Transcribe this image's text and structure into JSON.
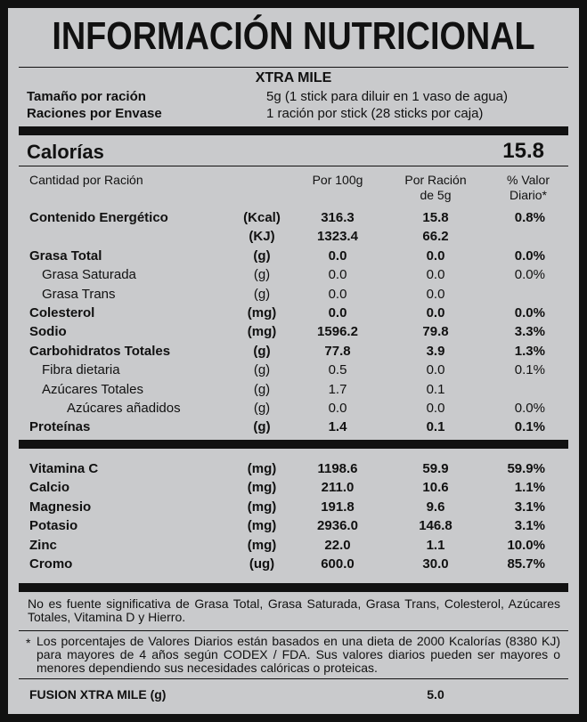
{
  "title": "INFORMACIÓN NUTRICIONAL",
  "product": "XTRA MILE",
  "serving": [
    {
      "label": "Tamaño por ración",
      "value": "5g (1 stick para diluir en 1 vaso de agua)"
    },
    {
      "label": "Raciones por Envase",
      "value": "1 ración por stick (28 sticks por caja)"
    }
  ],
  "calories": {
    "label": "Calorías",
    "value": "15.8"
  },
  "columns": [
    "Cantidad por Ración",
    "Por 100g",
    "Por Ración de 5g",
    "% Valor Diario*"
  ],
  "nutrients": [
    {
      "name": "Contenido Energético",
      "unit": "(Kcal)",
      "per_100g": "316.3",
      "per_serving": "15.8",
      "daily_value": "0.8%",
      "style": "bold"
    },
    {
      "unit": "(KJ)",
      "per_100g": "1323.4",
      "per_serving": "66.2",
      "style": "bold"
    },
    {
      "name": "Grasa Total",
      "unit": "(g)",
      "per_100g": "0.0",
      "per_serving": "0.0",
      "daily_value": "0.0%",
      "style": "bold"
    },
    {
      "name": "Grasa Saturada",
      "unit": "(g)",
      "per_100g": "0.0",
      "per_serving": "0.0",
      "daily_value": "0.0%",
      "style": "sub"
    },
    {
      "name": "Grasa Trans",
      "unit": "(g)",
      "per_100g": "0.0",
      "per_serving": "0.0",
      "style": "sub"
    },
    {
      "name": "Colesterol",
      "unit": "(mg)",
      "per_100g": "0.0",
      "per_serving": "0.0",
      "daily_value": "0.0%",
      "style": "bold"
    },
    {
      "name": "Sodio",
      "unit": "(mg)",
      "per_100g": "1596.2",
      "per_serving": "79.8",
      "daily_value": "3.3%",
      "style": "bold"
    },
    {
      "name": "Carbohidratos Totales",
      "unit": "(g)",
      "per_100g": "77.8",
      "per_serving": "3.9",
      "daily_value": "1.3%",
      "style": "bold"
    },
    {
      "name": "Fibra dietaria",
      "unit": "(g)",
      "per_100g": "0.5",
      "per_serving": "0.0",
      "daily_value": "0.1%",
      "style": "sub"
    },
    {
      "name": "Azúcares Totales",
      "unit": "(g)",
      "per_100g": "1.7",
      "per_serving": "0.1",
      "style": "sub"
    },
    {
      "name": "Azúcares añadidos",
      "unit": "(g)",
      "per_100g": "0.0",
      "per_serving": "0.0",
      "daily_value": "0.0%",
      "style": "subsub"
    },
    {
      "name": "Proteínas",
      "unit": "(g)",
      "per_100g": "1.4",
      "per_serving": "0.1",
      "daily_value": "0.1%",
      "style": "bold"
    }
  ],
  "minerals": [
    {
      "name": "Vitamina C",
      "unit": "(mg)",
      "per_100g": "1198.6",
      "per_serving": "59.9",
      "daily_value": "59.9%",
      "style": "bold"
    },
    {
      "name": "Calcio",
      "unit": "(mg)",
      "per_100g": "211.0",
      "per_serving": "10.6",
      "daily_value": "1.1%",
      "style": "bold"
    },
    {
      "name": "Magnesio",
      "unit": "(mg)",
      "per_100g": "191.8",
      "per_serving": "9.6",
      "daily_value": "3.1%",
      "style": "bold"
    },
    {
      "name": "Potasio",
      "unit": "(mg)",
      "per_100g": "2936.0",
      "per_serving": "146.8",
      "daily_value": "3.1%",
      "style": "bold"
    },
    {
      "name": "Zinc",
      "unit": "(mg)",
      "per_100g": "22.0",
      "per_serving": "1.1",
      "daily_value": "10.0%",
      "style": "bold"
    },
    {
      "name": "Cromo",
      "unit": "(ug)",
      "per_100g": "600.0",
      "per_serving": "30.0",
      "daily_value": "85.7%",
      "style": "bold"
    }
  ],
  "note": "No es fuente significativa de Grasa Total, Grasa Saturada, Grasa Trans, Colesterol, Azúcares Totales, Vitamina D y Hierro.",
  "footnote": {
    "mark": "*",
    "text": "Los porcentajes de Valores Diarios están basados en una dieta de 2000 Kcalorías (8380 KJ) para mayores de 4 años según CODEX / FDA. Sus valores diarios pueden ser mayores o menores dependiendo sus necesidades calóricas o proteicas."
  },
  "product_line": {
    "label": "FUSION XTRA MILE (g)",
    "value": "5.0"
  }
}
